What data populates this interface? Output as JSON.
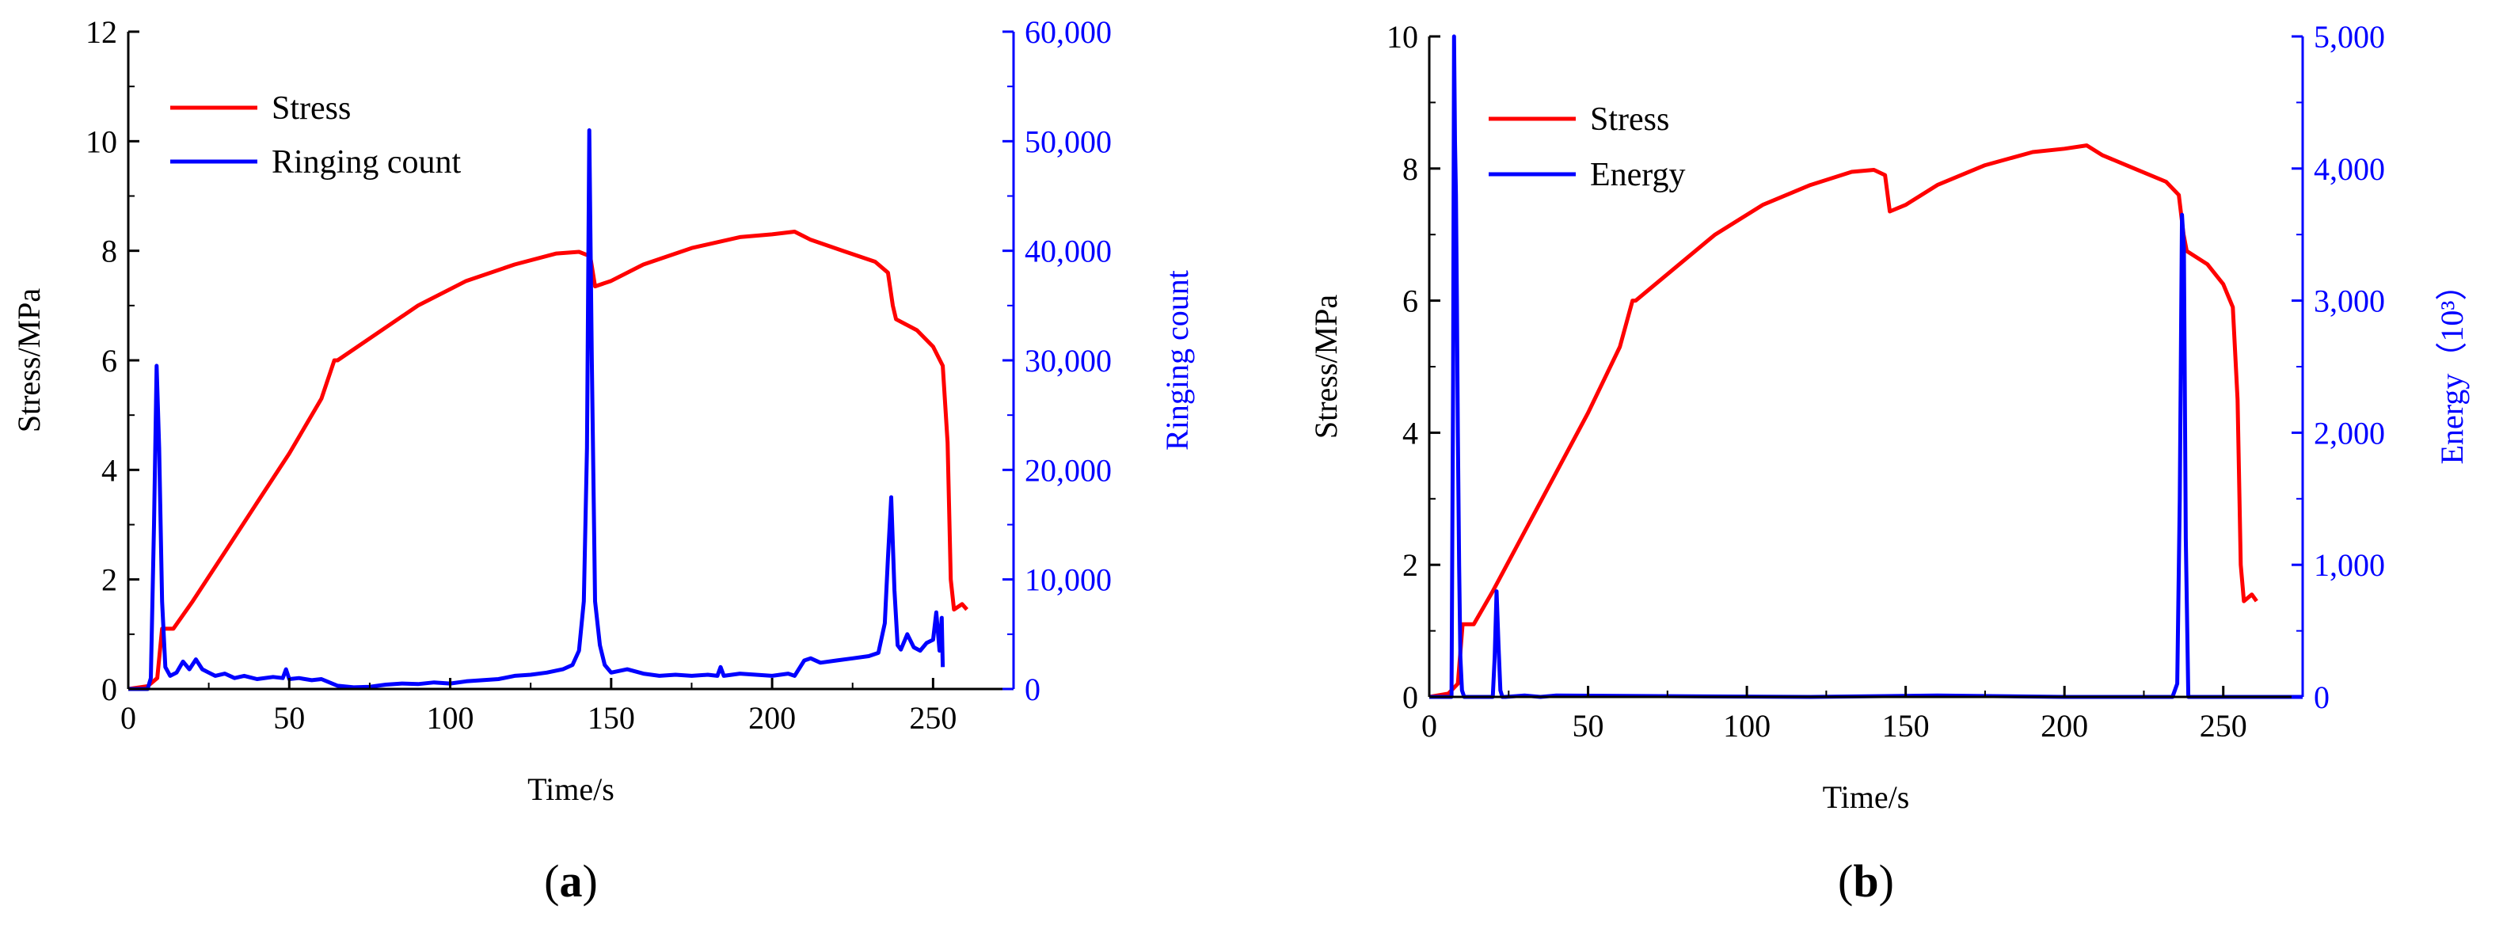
{
  "colors": {
    "stress": "#ff0000",
    "acoustic": "#0000ff",
    "axis": "#000000"
  },
  "chart_data": [
    {
      "type": "line",
      "panel_label": "a",
      "xlabel": "Time/s",
      "ylabel": "Stress/MPa",
      "y2label": "Ringing count",
      "xlim": [
        0,
        275
      ],
      "ylim": [
        0,
        12
      ],
      "y2lim": [
        0,
        60000
      ],
      "x_ticks": [
        "0",
        "50",
        "100",
        "150",
        "200",
        "250"
      ],
      "y_ticks": [
        "0",
        "2",
        "4",
        "6",
        "8",
        "10",
        "12"
      ],
      "y2_ticks": [
        "0",
        "10,000",
        "20,000",
        "30,000",
        "40,000",
        "50,000",
        "60,000"
      ],
      "legend": [
        "Stress",
        "Ringing count"
      ],
      "series": [
        {
          "name": "Stress",
          "axis": "left",
          "x": [
            0,
            6,
            9,
            10.5,
            14,
            20,
            30,
            40,
            50,
            60,
            64,
            65,
            75,
            90,
            105,
            120,
            133,
            140,
            143.5,
            145,
            150,
            160,
            175,
            190,
            200,
            207,
            212,
            222,
            232,
            236,
            237.5,
            238.5,
            245,
            250,
            253,
            254.5,
            255.5,
            256.5,
            259,
            260.5
          ],
          "y": [
            0,
            0.05,
            0.2,
            1.1,
            1.1,
            1.6,
            2.5,
            3.4,
            4.3,
            5.3,
            6.0,
            6.0,
            6.4,
            7.0,
            7.45,
            7.75,
            7.95,
            7.98,
            7.9,
            7.35,
            7.45,
            7.75,
            8.05,
            8.25,
            8.3,
            8.35,
            8.2,
            8.0,
            7.8,
            7.6,
            7.0,
            6.75,
            6.55,
            6.25,
            5.9,
            4.5,
            2.0,
            1.45,
            1.55,
            1.45
          ]
        },
        {
          "name": "Ringing count",
          "axis": "right",
          "x": [
            0,
            6,
            7,
            8,
            8.8,
            9.6,
            10.5,
            11.5,
            13,
            15,
            17,
            19,
            21,
            23,
            25,
            27,
            30,
            33,
            36,
            40,
            45,
            48,
            49,
            50,
            53,
            57,
            60,
            65,
            70,
            75,
            80,
            85,
            90,
            95,
            100,
            105,
            110,
            115,
            120,
            125,
            130,
            135,
            138,
            140,
            141.5,
            142.5,
            143.2,
            144,
            145,
            146.5,
            148,
            150,
            155,
            160,
            165,
            170,
            175,
            180,
            183,
            184,
            185,
            190,
            195,
            200,
            205,
            207,
            210,
            212,
            215,
            220,
            225,
            230,
            233,
            235,
            236,
            237,
            238,
            239,
            240,
            242,
            244,
            246,
            248,
            250,
            251,
            252,
            252.7,
            253
          ],
          "y": [
            0,
            0,
            1000,
            15000,
            29500,
            22000,
            8000,
            2000,
            1200,
            1500,
            2500,
            1800,
            2700,
            1800,
            1500,
            1200,
            1400,
            1000,
            1200,
            900,
            1100,
            1000,
            1800,
            900,
            1000,
            800,
            900,
            300,
            150,
            200,
            400,
            500,
            450,
            600,
            500,
            700,
            800,
            900,
            1200,
            1300,
            1500,
            1800,
            2200,
            3500,
            8000,
            22000,
            51000,
            30000,
            8000,
            4000,
            2200,
            1500,
            1800,
            1400,
            1200,
            1300,
            1200,
            1300,
            1200,
            2000,
            1200,
            1400,
            1300,
            1200,
            1400,
            1200,
            2600,
            2800,
            2400,
            2600,
            2800,
            3000,
            3300,
            6000,
            12000,
            17500,
            9000,
            4000,
            3600,
            5000,
            3800,
            3500,
            4200,
            4500,
            7000,
            3500,
            6500,
            2000
          ]
        }
      ]
    },
    {
      "type": "line",
      "panel_label": "b",
      "xlabel": "Time/s",
      "ylabel": "Stress/MPa",
      "y2label": "Energy（10³）",
      "xlim": [
        0,
        275
      ],
      "ylim": [
        0,
        10
      ],
      "y2lim": [
        0,
        5000
      ],
      "x_ticks": [
        "0",
        "50",
        "100",
        "150",
        "200",
        "250"
      ],
      "y_ticks": [
        "0",
        "2",
        "4",
        "6",
        "8",
        "10"
      ],
      "y2_ticks": [
        "0",
        "1,000",
        "2,000",
        "3,000",
        "4,000",
        "5,000"
      ],
      "legend": [
        "Stress",
        "Energy"
      ],
      "series": [
        {
          "name": "Stress",
          "axis": "left",
          "x": [
            0,
            6,
            9,
            10.5,
            14,
            20,
            30,
            40,
            50,
            60,
            64,
            65,
            75,
            90,
            105,
            120,
            133,
            140,
            143.5,
            145,
            150,
            160,
            175,
            190,
            200,
            207,
            212,
            222,
            232,
            236,
            237.5,
            238.5,
            245,
            250,
            253,
            254.5,
            255.5,
            256.5,
            259,
            260.5
          ],
          "y": [
            0,
            0.05,
            0.2,
            1.1,
            1.1,
            1.6,
            2.5,
            3.4,
            4.3,
            5.3,
            6.0,
            6.0,
            6.4,
            7.0,
            7.45,
            7.75,
            7.95,
            7.98,
            7.9,
            7.35,
            7.45,
            7.75,
            8.05,
            8.25,
            8.3,
            8.35,
            8.2,
            8.0,
            7.8,
            7.6,
            7.0,
            6.75,
            6.55,
            6.25,
            5.9,
            4.5,
            2.0,
            1.45,
            1.55,
            1.45
          ]
        },
        {
          "name": "Energy",
          "axis": "right",
          "x": [
            0,
            7,
            7.5,
            7.8,
            8.1,
            8.4,
            8.7,
            9.0,
            9.4,
            9.8,
            10.3,
            11,
            12,
            20,
            20.6,
            21.2,
            21.8,
            22.4,
            23,
            24,
            30,
            35,
            40,
            120,
            160,
            200,
            234,
            235.5,
            236.3,
            237,
            237.6,
            238.2,
            239,
            240,
            275
          ],
          "y": [
            0,
            0,
            2400,
            5000,
            4200,
            3800,
            3000,
            2000,
            1000,
            300,
            50,
            0,
            0,
            0,
            300,
            800,
            400,
            50,
            0,
            0,
            10,
            0,
            10,
            0,
            10,
            0,
            0,
            100,
            1500,
            3650,
            3400,
            1200,
            0,
            0,
            0
          ]
        }
      ]
    }
  ]
}
